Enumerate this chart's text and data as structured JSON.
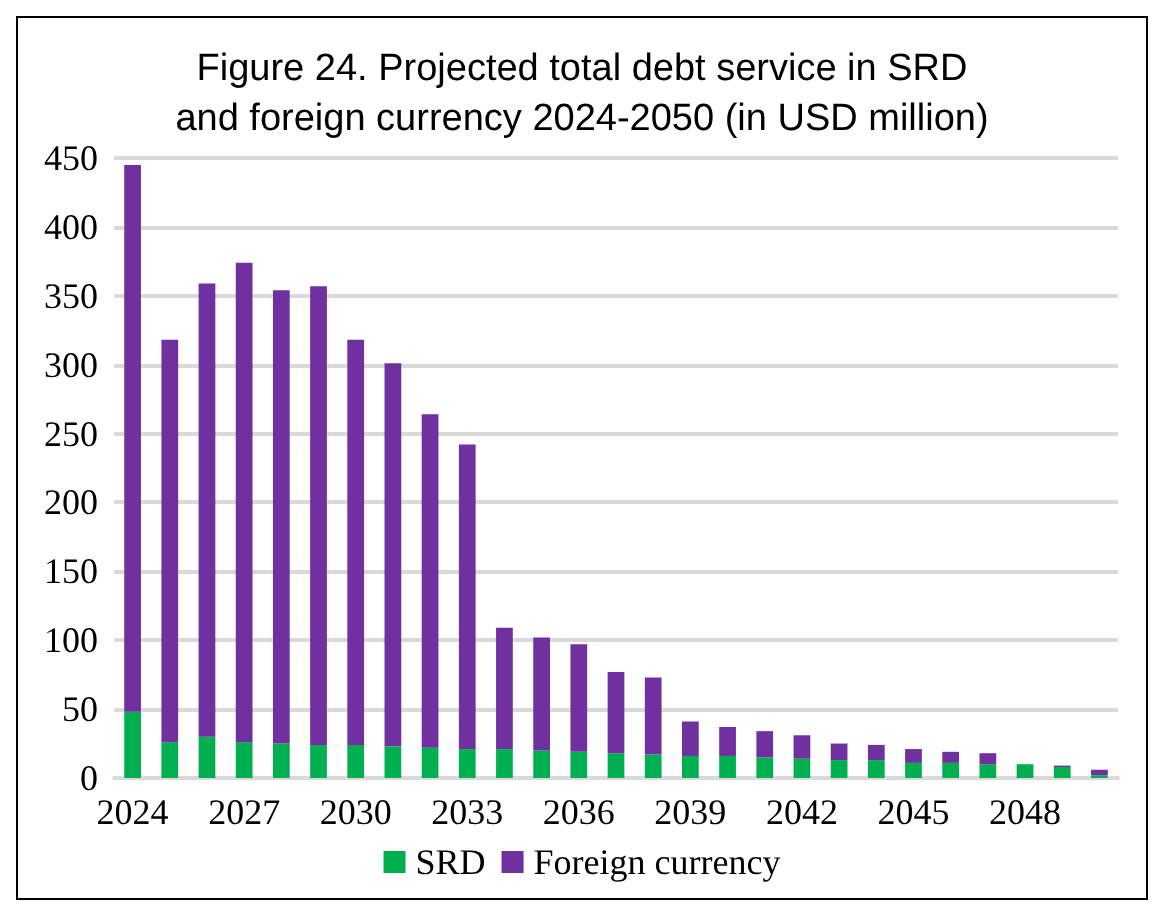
{
  "chart_data": {
    "type": "bar",
    "title": "Figure 24. Projected total debt service in SRD\nand foreign currency 2024-2050 (in USD million)",
    "categories": [
      "2024",
      null,
      null,
      "2027",
      null,
      null,
      "2030",
      null,
      null,
      "2033",
      null,
      null,
      "2036",
      null,
      null,
      "2039",
      null,
      null,
      "2042",
      null,
      null,
      "2045",
      null,
      null,
      "2048",
      null,
      null
    ],
    "stacked": true,
    "series": [
      {
        "name": "SRD",
        "color": "#00b050",
        "values": [
          48,
          26,
          30,
          26,
          25,
          24,
          24,
          23,
          22,
          21,
          21,
          20,
          19,
          18,
          17,
          16,
          16,
          15,
          14,
          13,
          13,
          11,
          11,
          10,
          10,
          8,
          2
        ]
      },
      {
        "name": "Foreign currency",
        "color": "#7030a0",
        "values": [
          397,
          292,
          329,
          348,
          329,
          333,
          294,
          278,
          242,
          221,
          88,
          82,
          78,
          59,
          56,
          25,
          21,
          19,
          17,
          12,
          11,
          10,
          8,
          8,
          0,
          1,
          4
        ]
      }
    ],
    "ylim": [
      0,
      450
    ],
    "yticks": [
      0,
      50,
      100,
      150,
      200,
      250,
      300,
      350,
      400,
      450
    ],
    "grid": "y",
    "legend": "bottom"
  }
}
